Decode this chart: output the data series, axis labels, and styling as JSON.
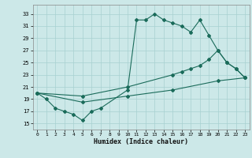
{
  "background_color": "#cce8e8",
  "grid_color": "#a8d0d0",
  "line_color": "#1a6b5a",
  "xlabel": "Humidex (Indice chaleur)",
  "xlim": [
    -0.5,
    23.5
  ],
  "ylim": [
    14.0,
    34.5
  ],
  "xticks": [
    0,
    1,
    2,
    3,
    4,
    5,
    6,
    7,
    8,
    9,
    10,
    11,
    12,
    13,
    14,
    15,
    16,
    17,
    18,
    19,
    20,
    21,
    22,
    23
  ],
  "yticks": [
    15,
    17,
    19,
    21,
    23,
    25,
    27,
    29,
    31,
    33
  ],
  "series_A_x": [
    0,
    1,
    2,
    3,
    4,
    5,
    6,
    7,
    10,
    11,
    12,
    13,
    14,
    15,
    16,
    17,
    18,
    19,
    20,
    21,
    22,
    23
  ],
  "series_A_y": [
    20.0,
    19.0,
    17.5,
    17.0,
    16.5,
    15.5,
    17.0,
    17.5,
    20.5,
    32.0,
    32.0,
    33.0,
    32.0,
    31.5,
    31.0,
    30.0,
    32.0,
    29.5,
    27.0,
    25.0,
    24.0,
    22.5
  ],
  "series_B_x": [
    0,
    5,
    10,
    15,
    16,
    17,
    18,
    19,
    20,
    21,
    22,
    23
  ],
  "series_B_y": [
    20.0,
    19.5,
    21.0,
    23.0,
    23.5,
    24.0,
    24.5,
    25.5,
    27.0,
    25.0,
    24.0,
    22.5
  ],
  "series_C_x": [
    0,
    5,
    10,
    15,
    20,
    23
  ],
  "series_C_y": [
    20.0,
    18.5,
    19.5,
    20.5,
    22.0,
    22.5
  ]
}
